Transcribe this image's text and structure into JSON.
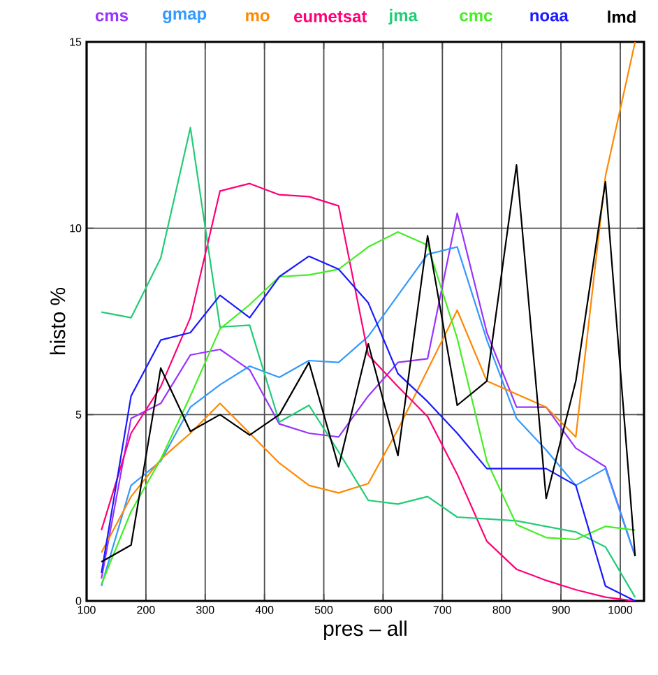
{
  "chart_data": {
    "type": "line",
    "xlabel": "pres – all",
    "ylabel": "histo %",
    "x": [
      125,
      175,
      225,
      275,
      325,
      375,
      425,
      475,
      525,
      575,
      625,
      675,
      725,
      775,
      825,
      875,
      925,
      975,
      1025
    ],
    "series": [
      {
        "name": "cms",
        "color": "#9933ff",
        "values": [
          0.6,
          4.9,
          5.3,
          6.6,
          6.75,
          6.2,
          4.75,
          4.5,
          4.4,
          5.5,
          6.4,
          6.5,
          10.4,
          7.2,
          5.2,
          5.2,
          4.1,
          3.6,
          1.2
        ]
      },
      {
        "name": "gmap",
        "color": "#3399ff",
        "values": [
          0.4,
          3.1,
          3.75,
          5.2,
          5.8,
          6.3,
          6.0,
          6.45,
          6.4,
          7.1,
          8.2,
          9.3,
          9.5,
          7.0,
          4.9,
          4.05,
          3.1,
          3.55,
          1.2
        ]
      },
      {
        "name": "mo",
        "color": "#ff8800",
        "values": [
          1.3,
          2.8,
          3.8,
          4.5,
          5.3,
          4.5,
          3.7,
          3.1,
          2.9,
          3.15,
          4.6,
          6.2,
          7.8,
          5.9,
          5.55,
          5.2,
          4.4,
          11.4,
          15
        ]
      },
      {
        "name": "eumetsat",
        "color": "#ff0077",
        "values": [
          1.9,
          4.5,
          5.75,
          7.6,
          11.0,
          11.2,
          10.9,
          10.85,
          10.6,
          6.6,
          5.75,
          4.95,
          3.4,
          1.6,
          0.85,
          0.55,
          0.3,
          0.1,
          0
        ]
      },
      {
        "name": "jma",
        "color": "#22cc77",
        "values": [
          7.75,
          7.6,
          9.2,
          12.7,
          7.35,
          7.4,
          4.8,
          5.25,
          4.0,
          2.7,
          2.6,
          2.8,
          2.25,
          2.2,
          2.15,
          2.0,
          1.85,
          1.45,
          0.1
        ]
      },
      {
        "name": "cmc",
        "color": "#44ee22",
        "values": [
          0.45,
          2.4,
          3.8,
          5.5,
          7.3,
          7.95,
          8.7,
          8.75,
          8.9,
          9.5,
          9.9,
          9.55,
          7.05,
          3.75,
          2.05,
          1.7,
          1.65,
          2.0,
          1.9
        ]
      },
      {
        "name": "noaa",
        "color": "#1a1aff",
        "values": [
          0.75,
          5.5,
          7.0,
          7.2,
          8.2,
          7.6,
          8.7,
          9.25,
          8.9,
          8.0,
          6.1,
          5.35,
          4.5,
          3.55,
          3.55,
          3.55,
          3.1,
          0.4,
          0
        ]
      },
      {
        "name": "lmd",
        "color": "#000000",
        "values": [
          1.05,
          1.5,
          6.25,
          4.55,
          5.0,
          4.45,
          5.0,
          6.4,
          3.6,
          6.9,
          3.9,
          9.8,
          5.25,
          5.9,
          11.7,
          2.75,
          5.9,
          11.25,
          1.2
        ]
      }
    ],
    "xlim": [
      100,
      1040
    ],
    "ylim": [
      0,
      15
    ],
    "xticks": [
      100,
      200,
      300,
      400,
      500,
      600,
      700,
      800,
      900,
      1000
    ],
    "yticks": [
      0,
      5,
      10,
      15
    ],
    "grid": true,
    "legend": "top",
    "marker": "none",
    "line_style": "solid"
  }
}
